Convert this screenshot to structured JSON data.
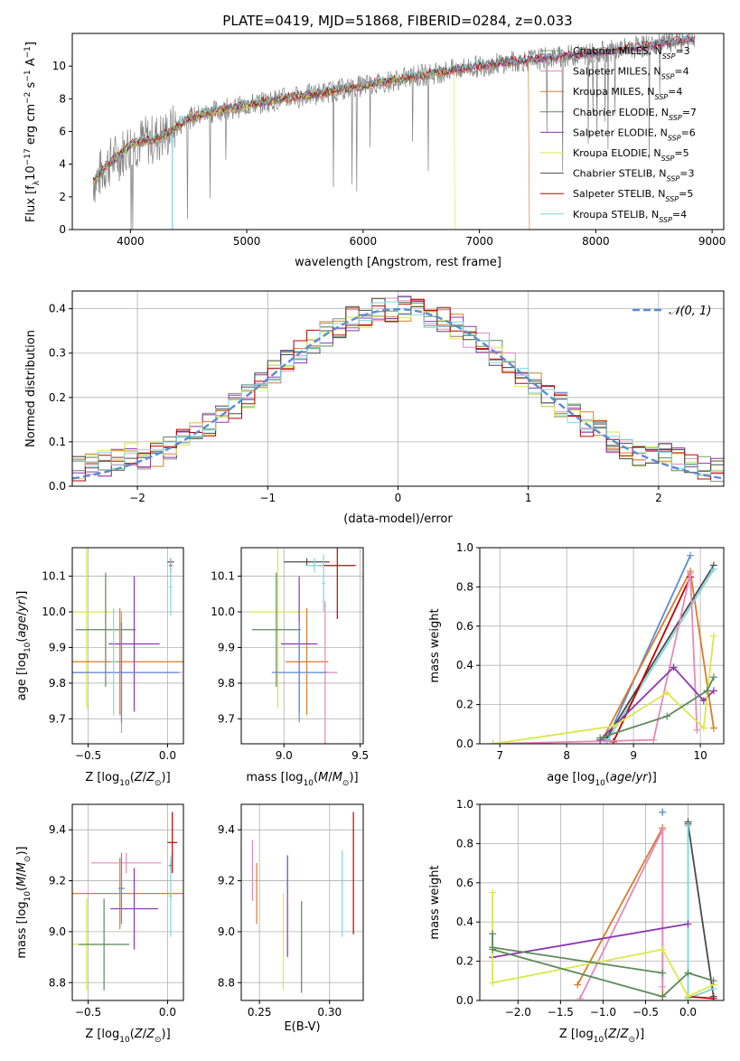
{
  "figure": {
    "title": "PLATE=0419, MJD=51868, FIBERID=0284, z=0.033"
  },
  "colors": {
    "grid": "#b0b0b0",
    "gauss": "#5b8bd6"
  },
  "chart_data": [
    {
      "id": "spectrum",
      "type": "line",
      "xlabel": "wavelength [Angstrom, rest frame]",
      "ylabel": "Flux [f_λ 10^-17 erg cm^-2 s^-1 A^-1]",
      "xlim": [
        3500,
        9100
      ],
      "ylim": [
        0,
        12
      ],
      "xticks": [
        4000,
        5000,
        6000,
        7000,
        8000,
        9000
      ],
      "yticks": [
        0,
        2,
        4,
        6,
        8,
        10
      ],
      "grid": false,
      "legend_position": "top-right",
      "series": [
        {
          "name": "Chabrier MILES, N_SSP=3",
          "color": "#7a9a7a",
          "x": [
            3750,
            4000,
            4300,
            4700,
            5200,
            5800,
            6300,
            6800,
            7200,
            7400
          ]
        },
        {
          "name": "Salpeter MILES, N_SSP=4",
          "color": "#e58ab9"
        },
        {
          "name": "Kroupa MILES, N_SSP=4",
          "color": "#d97c2b"
        },
        {
          "name": "Chabrier ELODIE, N_SSP=7",
          "color": "#5b8a5b"
        },
        {
          "name": "Salpeter ELODIE, N_SSP=6",
          "color": "#8e35b0"
        },
        {
          "name": "Kroupa ELODIE, N_SSP=5",
          "color": "#d9e84a"
        },
        {
          "name": "Chabrier STELIB, N_SSP=3",
          "color": "#4a4a4a"
        },
        {
          "name": "Salpeter STELIB, N_SSP=5",
          "color": "#c00000"
        },
        {
          "name": "Kroupa STELIB, N_SSP=4",
          "color": "#7dd6dc"
        }
      ],
      "continuum": {
        "x": [
          3700,
          3800,
          3900,
          4000,
          4100,
          4200,
          4300,
          4400,
          4500,
          4700,
          5000,
          5300,
          5600,
          6000,
          6400,
          6800,
          7200,
          7600,
          8000,
          8400,
          8800
        ],
        "y": [
          3.0,
          4.0,
          4.5,
          5.2,
          5.4,
          5.5,
          5.8,
          6.3,
          6.8,
          7.2,
          7.6,
          8.0,
          8.3,
          8.8,
          9.3,
          9.8,
          10.2,
          10.5,
          10.8,
          11.2,
          11.6
        ]
      },
      "observed_color": "#808080"
    },
    {
      "id": "residuals",
      "type": "histogram",
      "xlabel": "(data-model)/error",
      "ylabel": "Normed distribution",
      "xlim": [
        -2.5,
        2.5
      ],
      "ylim": [
        0,
        0.44
      ],
      "xticks": [
        -2,
        -1,
        0,
        1,
        2
      ],
      "yticks": [
        0.0,
        0.1,
        0.2,
        0.3,
        0.4
      ],
      "grid": true,
      "legend": {
        "label": "𝒩(0, 1)",
        "position": "top-right"
      },
      "bin_width": 0.1,
      "reference_curve": "gaussian N(0,1)"
    },
    {
      "id": "age-vs-Z",
      "type": "errorbar",
      "xlabel": "Z [log10(Z/Z⊙)]",
      "ylabel": "age [log10(age/yr)]",
      "xlim": [
        -0.6,
        0.1
      ],
      "ylim": [
        9.63,
        10.18
      ],
      "xticks": [
        -0.5,
        0.0
      ],
      "yticks": [
        9.7,
        9.8,
        9.9,
        10.0,
        10.1
      ],
      "grid": true,
      "points": [
        {
          "color": "#d9e84a",
          "x": -0.51,
          "xerr": 0.17,
          "y": 10.0,
          "yerr": 0.27
        },
        {
          "color": "#5b8a5b",
          "x": -0.39,
          "xerr": 0.19,
          "y": 9.95,
          "yerr": 0.16
        },
        {
          "color": "#d97c2b",
          "x": -0.3,
          "xerr": 0.4,
          "y": 9.86,
          "yerr": 0.15
        },
        {
          "color": "#8e35b0",
          "x": -0.21,
          "xerr": 0.16,
          "y": 9.91,
          "yerr": 0.19
        },
        {
          "color": "#e58ab9",
          "x": -0.29,
          "xerr": 0.38,
          "y": 9.83,
          "yerr": 0.17
        },
        {
          "color": "#5b8bd6",
          "x": -0.29,
          "xerr": 0.36,
          "y": 9.83,
          "yerr": 0.14
        },
        {
          "color": "#4a4a4a",
          "x": 0.02,
          "xerr": 0.02,
          "y": 10.14,
          "yerr": 0.01
        },
        {
          "color": "#c00000",
          "x": 0.02,
          "xerr": 0.01,
          "y": 10.13,
          "yerr": 0.02
        },
        {
          "color": "#7dd6dc",
          "x": 0.02,
          "xerr": 0.01,
          "y": 10.07,
          "yerr": 0.08
        },
        {
          "color": "#7dd6dc",
          "x": -0.34,
          "xerr": 0.02,
          "y": 9.86,
          "yerr": 0.15
        }
      ]
    },
    {
      "id": "age-vs-mass",
      "type": "errorbar",
      "xlabel": "mass [log10(M/M⊙)]",
      "ylabel": "",
      "xlim": [
        8.72,
        9.52
      ],
      "ylim": [
        9.63,
        10.18
      ],
      "xticks": [
        9.0,
        9.5
      ],
      "yticks": [
        9.7,
        9.8,
        9.9,
        10.0,
        10.1
      ],
      "grid": true,
      "points": [
        {
          "color": "#d9e84a",
          "x": 8.96,
          "xerr": 0.18,
          "y": 10.0,
          "yerr": 0.27
        },
        {
          "color": "#5b8a5b",
          "x": 8.95,
          "xerr": 0.16,
          "y": 9.95,
          "yerr": 0.16
        },
        {
          "color": "#d97c2b",
          "x": 9.15,
          "xerr": 0.14,
          "y": 9.86,
          "yerr": 0.15
        },
        {
          "color": "#8e35b0",
          "x": 9.1,
          "xerr": 0.12,
          "y": 9.91,
          "yerr": 0.19
        },
        {
          "color": "#e58ab9",
          "x": 9.27,
          "xerr": 0.08,
          "y": 9.83,
          "yerr": 0.2
        },
        {
          "color": "#5b8bd6",
          "x": 9.1,
          "xerr": 0.18,
          "y": 9.83,
          "yerr": 0.14
        },
        {
          "color": "#4a4a4a",
          "x": 9.15,
          "xerr": 0.15,
          "y": 10.14,
          "yerr": 0.01
        },
        {
          "color": "#c00000",
          "x": 9.35,
          "xerr": 0.12,
          "y": 10.13,
          "yerr": 0.15
        },
        {
          "color": "#7dd6dc",
          "x": 9.2,
          "xerr": 0.06,
          "y": 10.13,
          "yerr": 0.02
        },
        {
          "color": "#7dd6dc",
          "x": 9.26,
          "xerr": 0.01,
          "y": 10.08,
          "yerr": 0.08
        }
      ]
    },
    {
      "id": "weight-vs-age",
      "type": "line",
      "xlabel": "age [log10(age/yr)]",
      "ylabel": "mass weight",
      "xlim": [
        6.7,
        10.35
      ],
      "ylim": [
        0,
        1.0
      ],
      "xticks": [
        7,
        8,
        9,
        10
      ],
      "yticks": [
        0.0,
        0.2,
        0.4,
        0.6,
        0.8,
        1.0
      ],
      "grid": true,
      "series": [
        {
          "color": "#5b8bd6",
          "x": [
            8.6,
            9.85
          ],
          "y": [
            0.02,
            0.96
          ]
        },
        {
          "color": "#d97c2b",
          "x": [
            8.55,
            9.85,
            10.2
          ],
          "y": [
            0.03,
            0.88,
            0.08
          ]
        },
        {
          "color": "#4a4a4a",
          "x": [
            8.6,
            10.2
          ],
          "y": [
            0.03,
            0.91
          ]
        },
        {
          "color": "#7dd6dc",
          "x": [
            8.6,
            10.2
          ],
          "y": [
            0.01,
            0.89
          ]
        },
        {
          "color": "#c00000",
          "x": [
            8.7,
            9.85
          ],
          "y": [
            0.01,
            0.85
          ]
        },
        {
          "color": "#e58ab9",
          "x": [
            6.9,
            9.3,
            9.85,
            9.95
          ],
          "y": [
            0.0,
            0.02,
            0.87,
            0.07
          ]
        },
        {
          "color": "#8e35b0",
          "x": [
            8.5,
            9.6,
            10.05,
            10.2
          ],
          "y": [
            0.02,
            0.39,
            0.22,
            0.27
          ]
        },
        {
          "color": "#d9e84a",
          "x": [
            6.9,
            8.7,
            9.5,
            10.05,
            10.2
          ],
          "y": [
            0.0,
            0.09,
            0.26,
            0.08,
            0.55
          ]
        },
        {
          "color": "#5b8a5b",
          "x": [
            8.5,
            9.5,
            10.1,
            10.2
          ],
          "y": [
            0.03,
            0.14,
            0.27,
            0.34
          ]
        }
      ]
    },
    {
      "id": "mass-vs-Z",
      "type": "errorbar",
      "xlabel": "Z [log10(Z/Z⊙)]",
      "ylabel": "mass [log10(M/M⊙)]",
      "xlim": [
        -0.6,
        0.1
      ],
      "ylim": [
        8.73,
        9.5
      ],
      "xticks": [
        -0.5,
        0.0
      ],
      "yticks": [
        8.8,
        9.0,
        9.2,
        9.4
      ],
      "grid": true,
      "points": [
        {
          "color": "#d9e84a",
          "x": -0.51,
          "xerr": 0.17,
          "y": 8.95,
          "yerr": 0.18
        },
        {
          "color": "#5b8a5b",
          "x": -0.4,
          "xerr": 0.16,
          "y": 8.95,
          "yerr": 0.18
        },
        {
          "color": "#d97c2b",
          "x": -0.3,
          "xerr": 0.4,
          "y": 9.15,
          "yerr": 0.14
        },
        {
          "color": "#8e35b0",
          "x": -0.21,
          "xerr": 0.15,
          "y": 9.09,
          "yerr": 0.16
        },
        {
          "color": "#e58ab9",
          "x": -0.26,
          "xerr": 0.22,
          "y": 9.27,
          "yerr": 0.04
        },
        {
          "color": "#5b8bd6",
          "x": -0.29,
          "xerr": 0.02,
          "y": 9.17,
          "yerr": 0.14
        },
        {
          "color": "#c00000",
          "x": 0.03,
          "xerr": 0.03,
          "y": 9.35,
          "yerr": 0.12
        },
        {
          "color": "#4a4a4a",
          "x": 0.02,
          "xerr": 0.01,
          "y": 9.26,
          "yerr": 0.02
        },
        {
          "color": "#7dd6dc",
          "x": 0.02,
          "xerr": 0.01,
          "y": 9.14,
          "yerr": 0.16
        }
      ]
    },
    {
      "id": "mass-vs-EBV",
      "type": "errorbar",
      "xlabel": "E(B-V)",
      "ylabel": "",
      "xlim": [
        0.237,
        0.324
      ],
      "ylim": [
        8.73,
        9.5
      ],
      "xticks": [
        0.25,
        0.3
      ],
      "yticks": [
        8.8,
        9.0,
        9.2,
        9.4
      ],
      "grid": true,
      "points": [
        {
          "color": "#e58ab9",
          "x": 0.245,
          "y": 9.24,
          "yerr": 0.12
        },
        {
          "color": "#d97c2b",
          "x": 0.248,
          "y": 9.15,
          "yerr": 0.12
        },
        {
          "color": "#d9e84a",
          "x": 0.267,
          "y": 8.96,
          "yerr": 0.19
        },
        {
          "color": "#8e35b0",
          "x": 0.27,
          "y": 9.1,
          "yerr": 0.2
        },
        {
          "color": "#5b8a5b",
          "x": 0.28,
          "y": 8.94,
          "yerr": 0.18
        },
        {
          "color": "#7dd6dc",
          "x": 0.309,
          "y": 9.15,
          "yerr": 0.17
        },
        {
          "color": "#c00000",
          "x": 0.317,
          "y": 9.23,
          "yerr": 0.24
        }
      ]
    },
    {
      "id": "weight-vs-Z",
      "type": "line",
      "xlabel": "Z [log10(Z/Z⊙)]",
      "ylabel": "mass weight",
      "xlim": [
        -2.45,
        0.42
      ],
      "ylim": [
        0,
        1.0
      ],
      "xticks": [
        -2.0,
        -1.5,
        -1.0,
        -0.5,
        0.0
      ],
      "yticks": [
        0.0,
        0.2,
        0.4,
        0.6,
        0.8,
        1.0
      ],
      "grid": true,
      "series": [
        {
          "color": "#5b8bd6",
          "x": [
            -0.3,
            -0.3
          ],
          "y": [
            0.96,
            0.96
          ]
        },
        {
          "color": "#d97c2b",
          "x": [
            -1.3,
            -0.3,
            -0.3
          ],
          "y": [
            0.08,
            0.88,
            0.02
          ]
        },
        {
          "color": "#e58ab9",
          "x": [
            -1.27,
            -0.3,
            -0.3
          ],
          "y": [
            0.01,
            0.87,
            0.07
          ]
        },
        {
          "color": "#4a4a4a",
          "x": [
            0.0,
            0.0,
            0.3
          ],
          "y": [
            0.91,
            0.9,
            0.02
          ]
        },
        {
          "color": "#7dd6dc",
          "x": [
            0.0,
            0.0,
            0.3
          ],
          "y": [
            0.89,
            0.01,
            0.06
          ]
        },
        {
          "color": "#c00000",
          "x": [
            0.0,
            0.3
          ],
          "y": [
            0.02,
            0.01
          ]
        },
        {
          "color": "#8e35b0",
          "x": [
            -2.3,
            0.0
          ],
          "y": [
            0.22,
            0.39
          ]
        },
        {
          "color": "#d9e84a",
          "x": [
            -2.3,
            -2.3,
            -0.3,
            0.0,
            0.3
          ],
          "y": [
            0.55,
            0.09,
            0.26,
            0.02,
            0.08
          ]
        },
        {
          "color": "#5b8a5b",
          "x": [
            -2.3,
            -0.3,
            0.0,
            0.3
          ],
          "y": [
            0.26,
            0.02,
            0.14,
            0.1
          ]
        },
        {
          "color": "#5b8a5b",
          "x": [
            -2.3,
            -2.3,
            -0.3
          ],
          "y": [
            0.34,
            0.27,
            0.14
          ]
        }
      ]
    }
  ]
}
